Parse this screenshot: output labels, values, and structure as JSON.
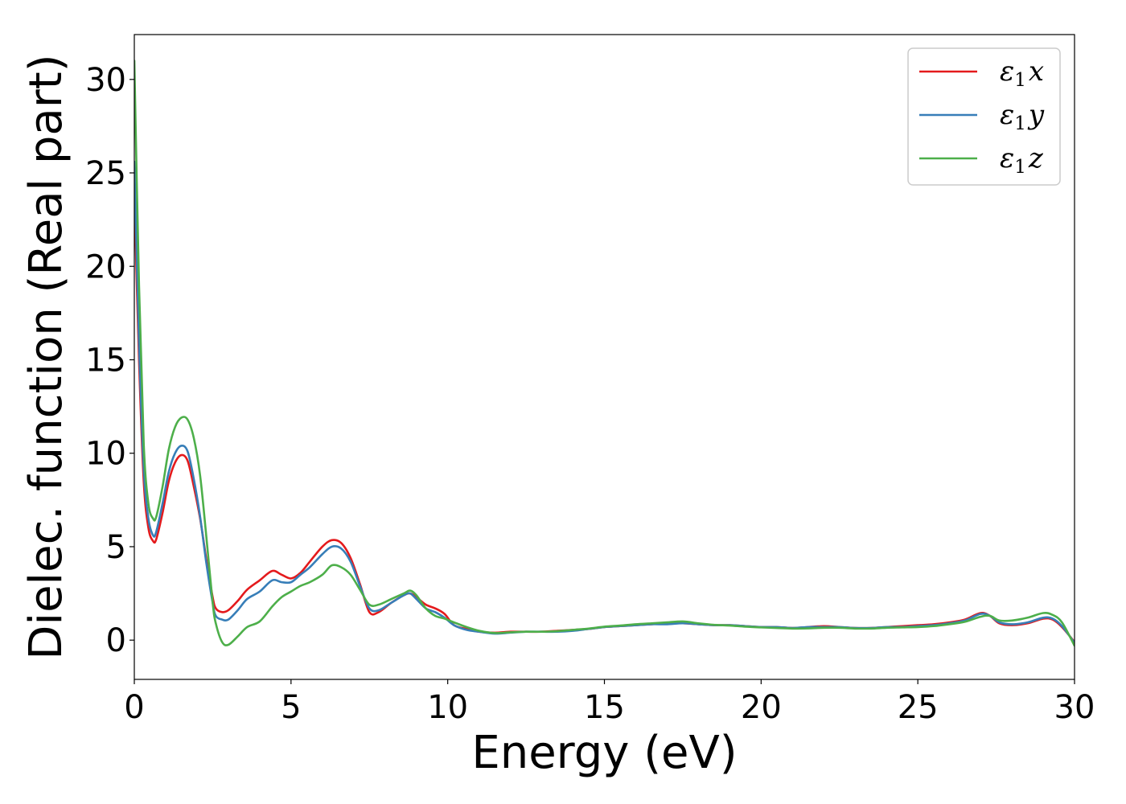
{
  "chart_data": {
    "type": "line",
    "xlabel": "Energy (eV)",
    "ylabel": "Dielec. function (Real part)",
    "xlim": [
      0,
      30
    ],
    "ylim": [
      -2.1,
      32.4
    ],
    "xticks": [
      0,
      5,
      10,
      15,
      20,
      25,
      30
    ],
    "yticks": [
      0,
      5,
      10,
      15,
      20,
      25,
      30
    ],
    "grid": false,
    "legend_position": "top-right",
    "series": [
      {
        "name": "x",
        "name_main": "ε",
        "name_sub": "1",
        "color": "#e41a1c",
        "x": [
          0,
          0.15,
          0.3,
          0.45,
          0.6,
          0.7,
          0.9,
          1.1,
          1.3,
          1.5,
          1.7,
          1.9,
          2.1,
          2.3,
          2.5,
          2.6,
          2.8,
          3.0,
          3.3,
          3.6,
          4.0,
          4.4,
          4.7,
          5.0,
          5.3,
          5.6,
          6.0,
          6.3,
          6.6,
          6.9,
          7.2,
          7.5,
          7.8,
          8.2,
          8.6,
          8.8,
          9.0,
          9.3,
          9.6,
          9.9,
          10.2,
          10.6,
          11.0,
          11.5,
          12.0,
          12.5,
          13.0,
          13.5,
          14.0,
          14.5,
          15.0,
          15.5,
          16.0,
          16.5,
          17.0,
          17.5,
          18.0,
          18.5,
          19.0,
          19.5,
          20.0,
          20.5,
          21.0,
          21.5,
          22.0,
          22.5,
          23.0,
          23.5,
          24.0,
          24.5,
          25.0,
          25.5,
          26.0,
          26.5,
          27.0,
          27.3,
          27.6,
          28.0,
          28.5,
          29.0,
          29.3,
          29.6,
          30.0
        ],
        "values": [
          24.0,
          15.0,
          8.5,
          6.0,
          5.3,
          5.4,
          6.8,
          8.5,
          9.5,
          9.9,
          9.6,
          8.2,
          6.5,
          4.3,
          2.3,
          1.7,
          1.5,
          1.6,
          2.1,
          2.7,
          3.2,
          3.7,
          3.5,
          3.3,
          3.6,
          4.2,
          5.0,
          5.35,
          5.2,
          4.4,
          3.0,
          1.5,
          1.5,
          2.0,
          2.4,
          2.5,
          2.3,
          1.9,
          1.7,
          1.4,
          0.8,
          0.6,
          0.45,
          0.4,
          0.45,
          0.45,
          0.45,
          0.5,
          0.55,
          0.6,
          0.7,
          0.75,
          0.8,
          0.85,
          0.9,
          0.9,
          0.85,
          0.8,
          0.8,
          0.75,
          0.7,
          0.7,
          0.65,
          0.7,
          0.75,
          0.7,
          0.65,
          0.65,
          0.7,
          0.75,
          0.8,
          0.85,
          0.95,
          1.1,
          1.45,
          1.3,
          0.9,
          0.8,
          0.9,
          1.15,
          1.1,
          0.7,
          -0.1
        ]
      },
      {
        "name": "y",
        "name_main": "ε",
        "name_sub": "1",
        "color": "#377eb8",
        "x": [
          0,
          0.15,
          0.3,
          0.45,
          0.6,
          0.7,
          0.9,
          1.1,
          1.3,
          1.5,
          1.7,
          1.9,
          2.1,
          2.3,
          2.5,
          2.6,
          2.8,
          3.0,
          3.3,
          3.6,
          4.0,
          4.4,
          4.7,
          5.0,
          5.3,
          5.6,
          6.0,
          6.3,
          6.6,
          6.9,
          7.2,
          7.5,
          7.8,
          8.2,
          8.6,
          8.8,
          9.0,
          9.3,
          9.6,
          9.9,
          10.2,
          10.6,
          11.0,
          11.5,
          12.0,
          12.5,
          13.0,
          13.5,
          14.0,
          14.5,
          15.0,
          15.5,
          16.0,
          16.5,
          17.0,
          17.5,
          18.0,
          18.5,
          19.0,
          19.5,
          20.0,
          20.5,
          21.0,
          21.5,
          22.0,
          22.5,
          23.0,
          23.5,
          24.0,
          24.5,
          25.0,
          25.5,
          26.0,
          26.5,
          27.0,
          27.3,
          27.6,
          28.0,
          28.5,
          29.0,
          29.3,
          29.6,
          30.0
        ],
        "values": [
          25.6,
          16.0,
          9.2,
          6.5,
          5.6,
          5.8,
          7.3,
          9.0,
          10.0,
          10.4,
          10.1,
          8.6,
          6.6,
          4.1,
          2.0,
          1.3,
          1.1,
          1.1,
          1.6,
          2.2,
          2.6,
          3.2,
          3.1,
          3.1,
          3.5,
          3.9,
          4.6,
          5.0,
          4.9,
          4.2,
          2.9,
          1.7,
          1.6,
          2.0,
          2.4,
          2.5,
          2.2,
          1.7,
          1.5,
          1.2,
          0.8,
          0.55,
          0.45,
          0.35,
          0.4,
          0.45,
          0.45,
          0.45,
          0.5,
          0.6,
          0.7,
          0.75,
          0.8,
          0.85,
          0.85,
          0.9,
          0.85,
          0.8,
          0.8,
          0.75,
          0.7,
          0.7,
          0.65,
          0.7,
          0.7,
          0.7,
          0.65,
          0.65,
          0.7,
          0.7,
          0.75,
          0.8,
          0.9,
          1.05,
          1.4,
          1.3,
          0.95,
          0.85,
          0.95,
          1.2,
          1.15,
          0.75,
          -0.15
        ]
      },
      {
        "name": "z",
        "name_main": "ε",
        "name_sub": "1",
        "color": "#4daf4a",
        "x": [
          0,
          0.15,
          0.3,
          0.45,
          0.6,
          0.7,
          0.9,
          1.1,
          1.3,
          1.5,
          1.7,
          1.9,
          2.1,
          2.3,
          2.5,
          2.6,
          2.8,
          3.0,
          3.3,
          3.6,
          4.0,
          4.4,
          4.7,
          5.0,
          5.3,
          5.6,
          6.0,
          6.3,
          6.6,
          6.9,
          7.2,
          7.5,
          7.8,
          8.2,
          8.6,
          8.8,
          9.0,
          9.3,
          9.6,
          9.9,
          10.2,
          10.6,
          11.0,
          11.5,
          12.0,
          12.5,
          13.0,
          13.5,
          14.0,
          14.5,
          15.0,
          15.5,
          16.0,
          16.5,
          17.0,
          17.5,
          18.0,
          18.5,
          19.0,
          19.5,
          20.0,
          20.5,
          21.0,
          21.5,
          22.0,
          22.5,
          23.0,
          23.5,
          24.0,
          24.5,
          25.0,
          25.5,
          26.0,
          26.5,
          27.0,
          27.3,
          27.6,
          28.0,
          28.5,
          29.0,
          29.3,
          29.6,
          30.0
        ],
        "values": [
          31.0,
          19.0,
          10.5,
          7.3,
          6.5,
          6.6,
          8.2,
          10.2,
          11.4,
          11.9,
          11.8,
          10.8,
          8.8,
          5.5,
          2.0,
          0.9,
          -0.1,
          -0.25,
          0.2,
          0.7,
          1.0,
          1.8,
          2.3,
          2.6,
          2.9,
          3.1,
          3.5,
          4.0,
          3.9,
          3.5,
          2.7,
          1.9,
          1.9,
          2.2,
          2.5,
          2.65,
          2.4,
          1.7,
          1.3,
          1.15,
          0.95,
          0.7,
          0.5,
          0.38,
          0.42,
          0.45,
          0.45,
          0.48,
          0.55,
          0.62,
          0.72,
          0.78,
          0.85,
          0.9,
          0.95,
          1.0,
          0.9,
          0.82,
          0.78,
          0.72,
          0.68,
          0.65,
          0.62,
          0.63,
          0.66,
          0.66,
          0.62,
          0.62,
          0.66,
          0.68,
          0.7,
          0.75,
          0.85,
          0.98,
          1.25,
          1.3,
          1.05,
          1.05,
          1.2,
          1.45,
          1.35,
          0.95,
          -0.3
        ]
      }
    ]
  }
}
